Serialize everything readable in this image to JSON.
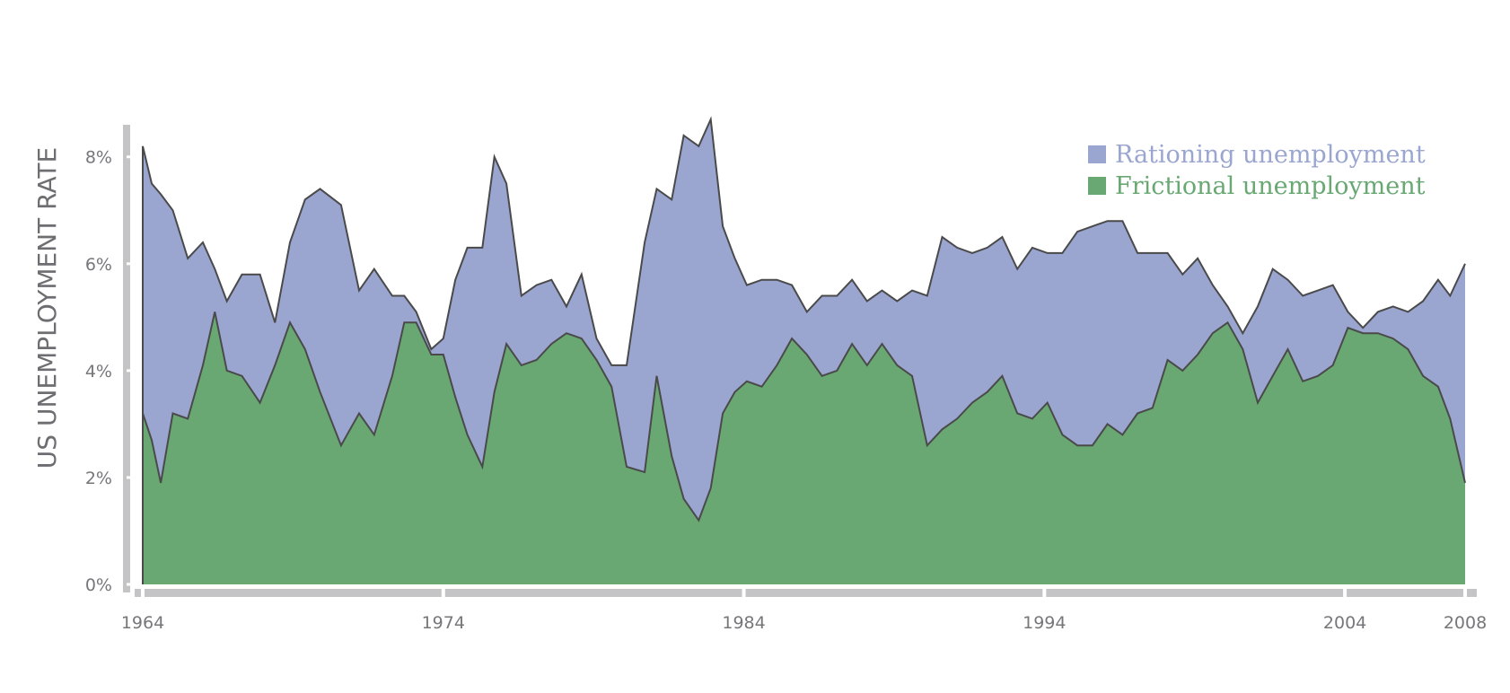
{
  "chart_data": {
    "type": "area",
    "stacked": true,
    "title": "",
    "xlabel": "",
    "ylabel": "US UNEMPLOYMENT RATE",
    "xlim": [
      1964,
      2008
    ],
    "ylim": [
      0,
      8.6
    ],
    "x_ticks": [
      1964,
      1974,
      1984,
      1994,
      2004,
      2008
    ],
    "y_ticks": [
      0,
      2,
      4,
      6,
      8
    ],
    "y_tick_labels": [
      "0%",
      "2%",
      "4%",
      "6%",
      "8%"
    ],
    "grid": false,
    "legend_position": "top-right",
    "colors": {
      "rationing": "#9aa5d0",
      "frictional": "#69a873",
      "outline": "#4a4a4a",
      "axis": "#c4c4c6"
    },
    "x": [
      1964,
      1964.3,
      1964.6,
      1965,
      1965.5,
      1966,
      1966.4,
      1966.8,
      1967.3,
      1967.9,
      1968.4,
      1968.9,
      1969.4,
      1969.9,
      1970.6,
      1971.2,
      1971.7,
      1972.3,
      1972.7,
      1973.1,
      1973.6,
      1974,
      1974.4,
      1974.8,
      1975.3,
      1975.7,
      1976.1,
      1976.6,
      1977.1,
      1977.6,
      1978.1,
      1978.6,
      1979.1,
      1979.6,
      1980.1,
      1980.7,
      1981.1,
      1981.6,
      1982,
      1982.5,
      1982.9,
      1983.3,
      1983.7,
      1984.1,
      1984.6,
      1985.1,
      1985.6,
      1986.1,
      1986.6,
      1987.1,
      1987.6,
      1988.1,
      1988.6,
      1989.1,
      1989.6,
      1990.1,
      1990.6,
      1991.1,
      1991.6,
      1992.1,
      1992.6,
      1993.1,
      1993.6,
      1994.1,
      1994.6,
      1995.1,
      1995.6,
      1996.1,
      1996.6,
      1997.1,
      1997.6,
      1998.1,
      1998.6,
      1999.1,
      1999.6,
      2000.1,
      2000.6,
      2001.1,
      2001.6,
      2002.1,
      2002.6,
      2003.1,
      2003.6,
      2004.1,
      2004.6,
      2005.1,
      2005.6,
      2006.1,
      2006.6,
      2007.1,
      2007.5,
      2007.9
    ],
    "series": [
      {
        "name": "Rationing unemployment",
        "values": [
          5.0,
          4.8,
          5.4,
          3.8,
          3.0,
          2.3,
          0.8,
          1.3,
          1.9,
          2.4,
          0.8,
          1.5,
          2.8,
          3.8,
          4.5,
          2.3,
          3.1,
          1.5,
          0.5,
          0.2,
          0.1,
          0.3,
          2.2,
          3.5,
          4.1,
          4.4,
          3.0,
          1.3,
          1.4,
          1.2,
          0.5,
          1.2,
          0.4,
          0.4,
          1.9,
          4.3,
          3.5,
          4.8,
          6.8,
          7.0,
          6.9,
          3.5,
          2.5,
          1.8,
          2.0,
          1.6,
          1.0,
          0.8,
          1.5,
          1.4,
          1.2,
          1.2,
          1.0,
          1.2,
          1.6,
          2.8,
          3.6,
          3.2,
          2.8,
          2.7,
          2.6,
          2.7,
          3.2,
          2.8,
          3.4,
          4.0,
          4.1,
          3.8,
          4.0,
          3.0,
          2.9,
          2.0,
          1.8,
          1.8,
          0.9,
          0.3,
          0.3,
          1.8,
          2.0,
          1.3,
          1.6,
          1.6,
          1.5,
          0.3,
          0.1,
          0.4,
          0.6,
          0.7,
          1.4,
          2.0,
          2.3,
          4.1
        ]
      },
      {
        "name": "Frictional unemployment",
        "values": [
          3.2,
          2.7,
          1.9,
          3.2,
          3.1,
          4.1,
          5.1,
          4.0,
          3.9,
          3.4,
          4.1,
          4.9,
          4.4,
          3.6,
          2.6,
          3.2,
          2.8,
          3.9,
          4.9,
          4.9,
          4.3,
          4.3,
          3.5,
          2.8,
          2.2,
          3.6,
          4.5,
          4.1,
          4.2,
          4.5,
          4.7,
          4.6,
          4.2,
          3.7,
          2.2,
          2.1,
          3.9,
          2.4,
          1.6,
          1.2,
          1.8,
          3.2,
          3.6,
          3.8,
          3.7,
          4.1,
          4.6,
          4.3,
          3.9,
          4.0,
          4.5,
          4.1,
          4.5,
          4.1,
          3.9,
          2.6,
          2.9,
          3.1,
          3.4,
          3.6,
          3.9,
          3.2,
          3.1,
          3.4,
          2.8,
          2.6,
          2.6,
          3.0,
          2.8,
          3.2,
          3.3,
          4.2,
          4.0,
          4.3,
          4.7,
          4.9,
          4.4,
          3.4,
          3.9,
          4.4,
          3.8,
          3.9,
          4.1,
          4.8,
          4.7,
          4.7,
          4.6,
          4.4,
          3.9,
          3.7,
          3.1,
          1.9
        ]
      }
    ]
  }
}
